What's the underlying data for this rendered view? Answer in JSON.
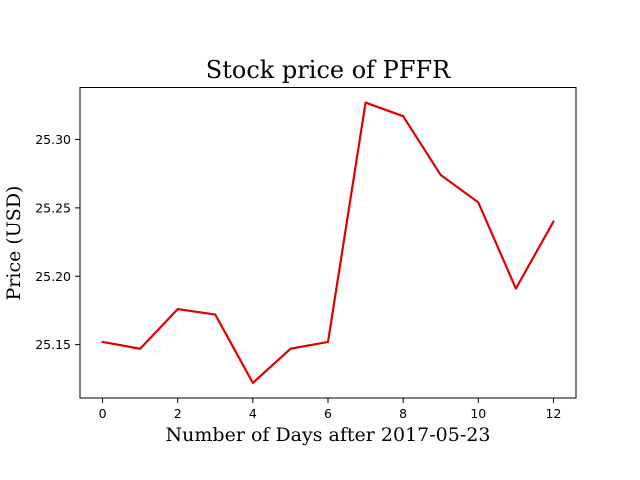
{
  "chart_data": {
    "type": "line",
    "title": "Stock price of PFFR",
    "xlabel": "Number of Days after 2017-05-23",
    "ylabel": "Price (USD)",
    "x": [
      0,
      1,
      2,
      3,
      4,
      5,
      6,
      7,
      8,
      9,
      10,
      11,
      12
    ],
    "series": [
      {
        "values": [
          25.152,
          25.147,
          25.176,
          25.172,
          25.122,
          25.147,
          25.152,
          25.327,
          25.317,
          25.274,
          25.254,
          25.191,
          25.24
        ],
        "color": "#e00000"
      }
    ],
    "xlim": [
      -0.6,
      12.6
    ],
    "ylim": [
      25.111,
      25.338
    ],
    "x_ticks": [
      "0",
      "2",
      "4",
      "6",
      "8",
      "10",
      "12"
    ],
    "y_ticks": [
      "25.15",
      "25.20",
      "25.25",
      "25.30"
    ],
    "grid": false
  }
}
